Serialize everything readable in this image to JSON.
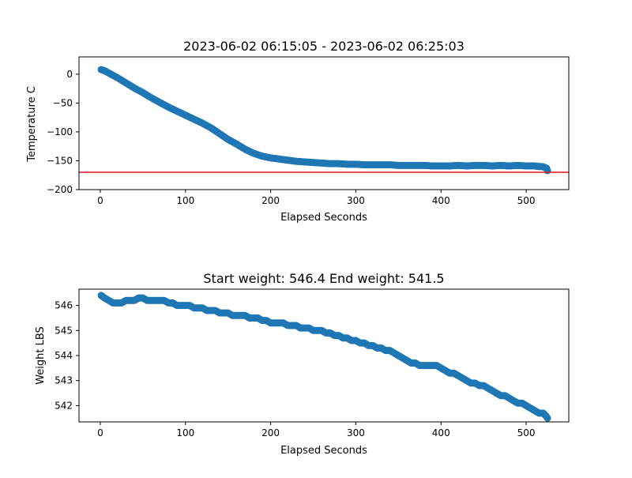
{
  "chart_data": [
    {
      "type": "scatter",
      "title": "2023-06-02 06:15:05 - 2023-06-02 06:25:03",
      "xlabel": "Elapsed Seconds",
      "ylabel": "Temperature C",
      "xlim": [
        -25,
        550
      ],
      "ylim": [
        -200,
        30
      ],
      "xticks": [
        0,
        100,
        200,
        300,
        400,
        500
      ],
      "yticks": [
        0,
        -50,
        -100,
        -150,
        -200
      ],
      "ytick_labels": [
        "0",
        "−50",
        "−100",
        "−150",
        "−200"
      ],
      "marker_color": "#1f77b4",
      "reference_line": {
        "y": -170,
        "color": "#d62728"
      },
      "series": [
        {
          "x": [
            1,
            5,
            10,
            15,
            20,
            30,
            40,
            50,
            60,
            70,
            80,
            90,
            100,
            110,
            120,
            130,
            140,
            150,
            160,
            170,
            180,
            190,
            200,
            210,
            220,
            230,
            240,
            250,
            260,
            270,
            280,
            290,
            300,
            310,
            320,
            330,
            340,
            350,
            360,
            370,
            380,
            390,
            400,
            410,
            420,
            430,
            440,
            450,
            460,
            470,
            480,
            490,
            500,
            505,
            510,
            515,
            518,
            521,
            524,
            525
          ],
          "y": [
            8,
            6,
            2,
            -2,
            -6,
            -15,
            -24,
            -32,
            -41,
            -49,
            -57,
            -64,
            -71,
            -78,
            -85,
            -93,
            -103,
            -113,
            -121,
            -130,
            -137,
            -142,
            -145,
            -147,
            -149,
            -151,
            -152,
            -153,
            -154,
            -155,
            -155,
            -156,
            -156,
            -157,
            -157,
            -157,
            -157,
            -158,
            -158,
            -158,
            -158,
            -159,
            -159,
            -159,
            -158,
            -159,
            -158,
            -158,
            -159,
            -158,
            -159,
            -158,
            -159,
            -159,
            -159,
            -160,
            -160,
            -161,
            -163,
            -167
          ]
        }
      ]
    },
    {
      "type": "scatter",
      "title": "Start weight: 546.4 End weight: 541.5",
      "xlabel": "Elapsed Seconds",
      "ylabel": "Weight LBS",
      "xlim": [
        -25,
        550
      ],
      "ylim": [
        541.35,
        546.65
      ],
      "xticks": [
        0,
        100,
        200,
        300,
        400,
        500
      ],
      "yticks": [
        542,
        543,
        544,
        545,
        546
      ],
      "ytick_labels": [
        "542",
        "543",
        "544",
        "545",
        "546"
      ],
      "marker_color": "#1f77b4",
      "series": [
        {
          "x": [
            1,
            5,
            10,
            15,
            20,
            25,
            30,
            35,
            40,
            45,
            50,
            55,
            60,
            65,
            70,
            75,
            80,
            85,
            90,
            95,
            100,
            105,
            110,
            115,
            120,
            125,
            130,
            135,
            140,
            145,
            150,
            155,
            160,
            165,
            170,
            175,
            180,
            185,
            190,
            195,
            200,
            205,
            210,
            215,
            220,
            225,
            230,
            235,
            240,
            245,
            250,
            255,
            260,
            265,
            270,
            275,
            280,
            285,
            290,
            295,
            300,
            305,
            310,
            315,
            320,
            325,
            330,
            335,
            340,
            345,
            350,
            355,
            360,
            365,
            370,
            375,
            380,
            385,
            390,
            395,
            400,
            405,
            410,
            415,
            420,
            425,
            430,
            435,
            440,
            445,
            450,
            455,
            460,
            465,
            470,
            475,
            480,
            485,
            490,
            495,
            500,
            505,
            510,
            515,
            520,
            523,
            525
          ],
          "y": [
            546.4,
            546.3,
            546.2,
            546.1,
            546.1,
            546.1,
            546.2,
            546.2,
            546.2,
            546.3,
            546.3,
            546.2,
            546.2,
            546.2,
            546.2,
            546.2,
            546.1,
            546.1,
            546.0,
            546.0,
            546.0,
            546.0,
            545.9,
            545.9,
            545.9,
            545.8,
            545.8,
            545.8,
            545.7,
            545.7,
            545.7,
            545.6,
            545.6,
            545.6,
            545.6,
            545.5,
            545.5,
            545.5,
            545.4,
            545.4,
            545.3,
            545.3,
            545.3,
            545.3,
            545.2,
            545.2,
            545.2,
            545.1,
            545.1,
            545.1,
            545.0,
            545.0,
            545.0,
            544.9,
            544.9,
            544.8,
            544.8,
            544.7,
            544.7,
            544.6,
            544.6,
            544.5,
            544.5,
            544.4,
            544.4,
            544.3,
            544.3,
            544.2,
            544.2,
            544.1,
            544.0,
            543.9,
            543.8,
            543.7,
            543.7,
            543.6,
            543.6,
            543.6,
            543.6,
            543.6,
            543.5,
            543.4,
            543.3,
            543.3,
            543.2,
            543.1,
            543.0,
            542.9,
            542.9,
            542.8,
            542.8,
            542.7,
            542.6,
            542.5,
            542.4,
            542.4,
            542.3,
            542.2,
            542.1,
            542.1,
            542.0,
            541.9,
            541.8,
            541.7,
            541.7,
            541.6,
            541.5
          ]
        }
      ]
    }
  ]
}
